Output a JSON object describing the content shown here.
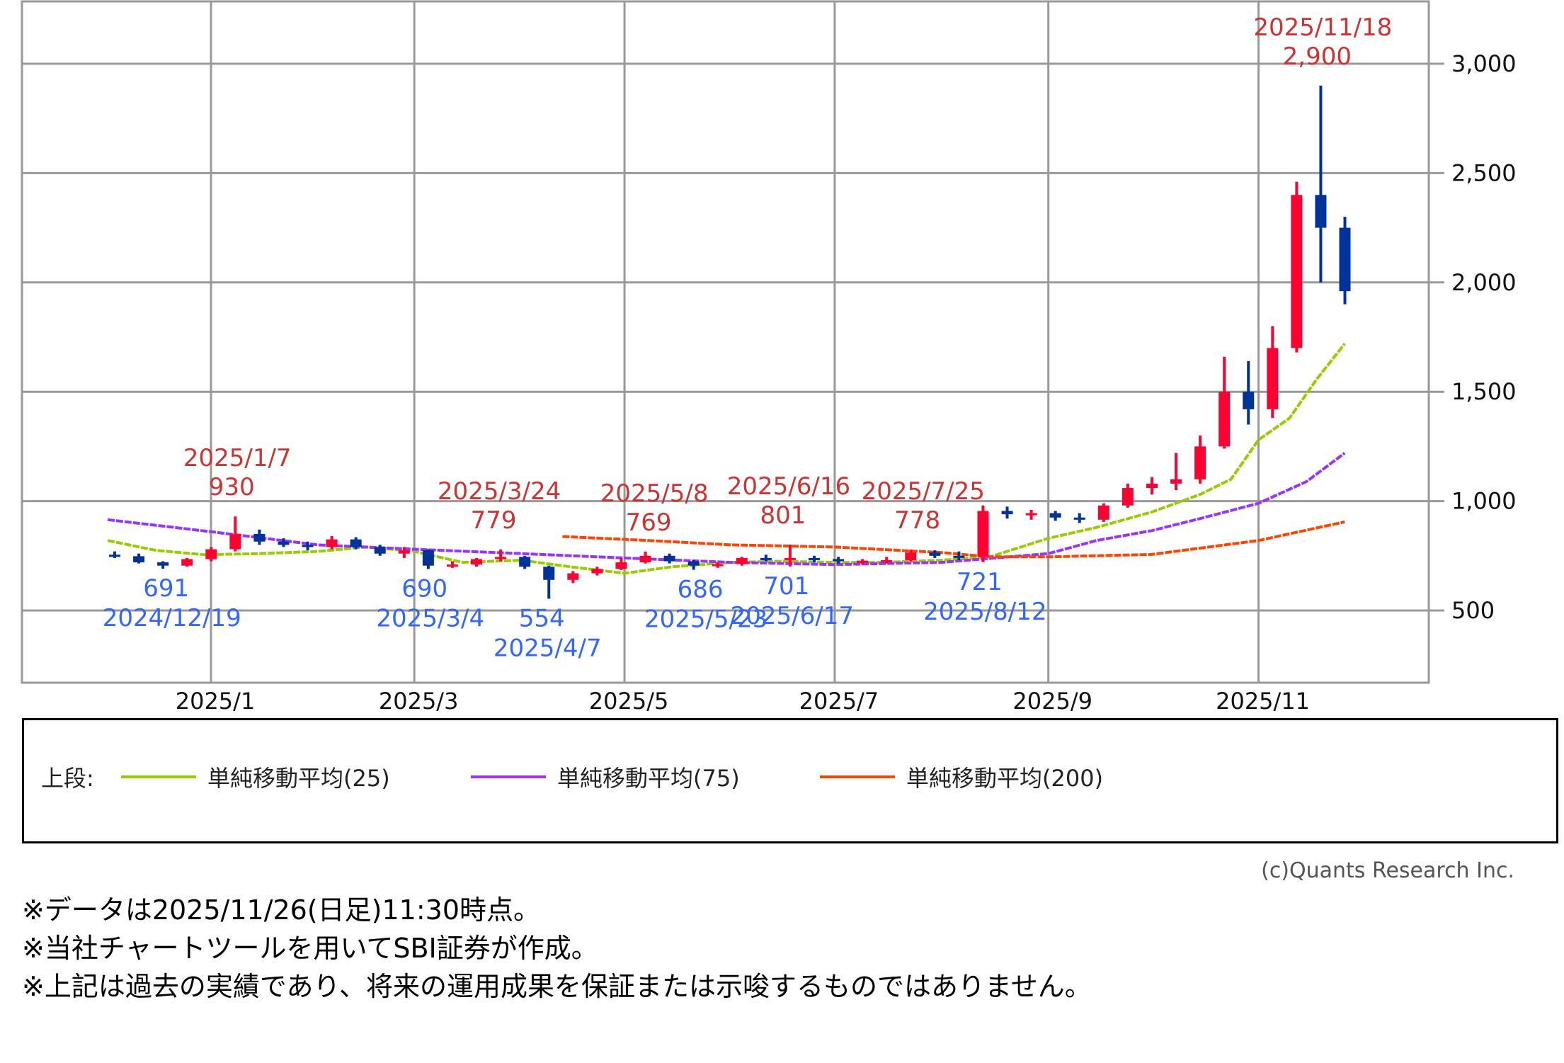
{
  "chart_data": {
    "type": "candlestick",
    "granularity_note": "",
    "x_ticks": [
      {
        "label": "2025/1",
        "date": "2025-01-01"
      },
      {
        "label": "2025/3",
        "date": "2025-03-01"
      },
      {
        "label": "2025/5",
        "date": "2025-05-01"
      },
      {
        "label": "2025/7",
        "date": "2025-07-01"
      },
      {
        "label": "2025/9",
        "date": "2025-09-01"
      },
      {
        "label": "2025/11",
        "date": "2025-11-01"
      }
    ],
    "y_ticks": [
      {
        "label": "500",
        "value": 500
      },
      {
        "label": "1,000",
        "value": 1000
      },
      {
        "label": "1,500",
        "value": 1500
      },
      {
        "label": "2,000",
        "value": 2000
      },
      {
        "label": "2,500",
        "value": 2500
      },
      {
        "label": "3,000",
        "value": 3000
      }
    ],
    "ylim": [
      200,
      3300
    ],
    "grid": true,
    "colors": {
      "up": "#ff0033",
      "down": "#003399",
      "ma25": "#99cc00",
      "ma75": "#9933ff",
      "ma200": "#ff4400",
      "high_label": "#cc3333",
      "low_label": "#3366ff",
      "grid": "#999999"
    },
    "candles": [
      {
        "date": "2024-12-02",
        "o": 755,
        "h": 770,
        "l": 740,
        "c": 748
      },
      {
        "date": "2024-12-09",
        "o": 748,
        "h": 760,
        "l": 715,
        "c": 720
      },
      {
        "date": "2024-12-16",
        "o": 720,
        "h": 725,
        "l": 691,
        "c": 705
      },
      {
        "date": "2024-12-23",
        "o": 705,
        "h": 740,
        "l": 700,
        "c": 735
      },
      {
        "date": "2024-12-30",
        "o": 735,
        "h": 790,
        "l": 725,
        "c": 780
      },
      {
        "date": "2025-01-06",
        "o": 780,
        "h": 930,
        "l": 770,
        "c": 850
      },
      {
        "date": "2025-01-13",
        "o": 850,
        "h": 870,
        "l": 800,
        "c": 815
      },
      {
        "date": "2025-01-20",
        "o": 815,
        "h": 830,
        "l": 790,
        "c": 800
      },
      {
        "date": "2025-01-27",
        "o": 800,
        "h": 815,
        "l": 775,
        "c": 790
      },
      {
        "date": "2025-02-03",
        "o": 790,
        "h": 840,
        "l": 780,
        "c": 825
      },
      {
        "date": "2025-02-10",
        "o": 825,
        "h": 835,
        "l": 780,
        "c": 790
      },
      {
        "date": "2025-02-17",
        "o": 790,
        "h": 800,
        "l": 750,
        "c": 760
      },
      {
        "date": "2025-02-24",
        "o": 760,
        "h": 790,
        "l": 740,
        "c": 775
      },
      {
        "date": "2025-03-03",
        "o": 775,
        "h": 780,
        "l": 690,
        "c": 705
      },
      {
        "date": "2025-03-10",
        "o": 705,
        "h": 725,
        "l": 695,
        "c": 710
      },
      {
        "date": "2025-03-17",
        "o": 710,
        "h": 740,
        "l": 700,
        "c": 735
      },
      {
        "date": "2025-03-24",
        "o": 735,
        "h": 779,
        "l": 725,
        "c": 745
      },
      {
        "date": "2025-03-31",
        "o": 745,
        "h": 750,
        "l": 690,
        "c": 700
      },
      {
        "date": "2025-04-07",
        "o": 700,
        "h": 705,
        "l": 554,
        "c": 640
      },
      {
        "date": "2025-04-14",
        "o": 640,
        "h": 680,
        "l": 625,
        "c": 670
      },
      {
        "date": "2025-04-21",
        "o": 670,
        "h": 700,
        "l": 660,
        "c": 690
      },
      {
        "date": "2025-04-28",
        "o": 690,
        "h": 740,
        "l": 685,
        "c": 720
      },
      {
        "date": "2025-05-05",
        "o": 720,
        "h": 769,
        "l": 715,
        "c": 750
      },
      {
        "date": "2025-05-12",
        "o": 750,
        "h": 760,
        "l": 715,
        "c": 725
      },
      {
        "date": "2025-05-19",
        "o": 725,
        "h": 730,
        "l": 686,
        "c": 705
      },
      {
        "date": "2025-05-26",
        "o": 705,
        "h": 720,
        "l": 695,
        "c": 712
      },
      {
        "date": "2025-06-02",
        "o": 712,
        "h": 745,
        "l": 705,
        "c": 740
      },
      {
        "date": "2025-06-09",
        "o": 740,
        "h": 755,
        "l": 725,
        "c": 735
      },
      {
        "date": "2025-06-16",
        "o": 735,
        "h": 801,
        "l": 701,
        "c": 740
      },
      {
        "date": "2025-06-23",
        "o": 740,
        "h": 750,
        "l": 720,
        "c": 735
      },
      {
        "date": "2025-06-30",
        "o": 735,
        "h": 745,
        "l": 715,
        "c": 725
      },
      {
        "date": "2025-07-07",
        "o": 725,
        "h": 735,
        "l": 710,
        "c": 728
      },
      {
        "date": "2025-07-14",
        "o": 728,
        "h": 745,
        "l": 715,
        "c": 730
      },
      {
        "date": "2025-07-21",
        "o": 730,
        "h": 778,
        "l": 725,
        "c": 765
      },
      {
        "date": "2025-07-28",
        "o": 765,
        "h": 775,
        "l": 740,
        "c": 750
      },
      {
        "date": "2025-08-04",
        "o": 750,
        "h": 770,
        "l": 730,
        "c": 745
      },
      {
        "date": "2025-08-11",
        "o": 745,
        "h": 980,
        "l": 721,
        "c": 955
      },
      {
        "date": "2025-08-18",
        "o": 955,
        "h": 975,
        "l": 920,
        "c": 940
      },
      {
        "date": "2025-08-25",
        "o": 940,
        "h": 960,
        "l": 915,
        "c": 945
      },
      {
        "date": "2025-09-01",
        "o": 945,
        "h": 955,
        "l": 910,
        "c": 925
      },
      {
        "date": "2025-09-08",
        "o": 925,
        "h": 945,
        "l": 900,
        "c": 915
      },
      {
        "date": "2025-09-15",
        "o": 915,
        "h": 990,
        "l": 905,
        "c": 980
      },
      {
        "date": "2025-09-22",
        "o": 980,
        "h": 1080,
        "l": 970,
        "c": 1060
      },
      {
        "date": "2025-09-29",
        "o": 1060,
        "h": 1110,
        "l": 1030,
        "c": 1080
      },
      {
        "date": "2025-10-06",
        "o": 1080,
        "h": 1220,
        "l": 1050,
        "c": 1100
      },
      {
        "date": "2025-10-13",
        "o": 1100,
        "h": 1300,
        "l": 1080,
        "c": 1250
      },
      {
        "date": "2025-10-20",
        "o": 1250,
        "h": 1660,
        "l": 1240,
        "c": 1500
      },
      {
        "date": "2025-10-27",
        "o": 1500,
        "h": 1640,
        "l": 1350,
        "c": 1420
      },
      {
        "date": "2025-11-03",
        "o": 1420,
        "h": 1800,
        "l": 1380,
        "c": 1700
      },
      {
        "date": "2025-11-10",
        "o": 1700,
        "h": 2460,
        "l": 1680,
        "c": 2400
      },
      {
        "date": "2025-11-17",
        "o": 2400,
        "h": 2900,
        "l": 2000,
        "c": 2250
      },
      {
        "date": "2025-11-24",
        "o": 2250,
        "h": 2300,
        "l": 1900,
        "c": 1960
      }
    ],
    "moving_averages": [
      {
        "name": "単純移動平均(25)",
        "key": "ma25",
        "points": [
          [
            "2024-12-02",
            820
          ],
          [
            "2024-12-16",
            775
          ],
          [
            "2024-12-30",
            755
          ],
          [
            "2025-01-15",
            760
          ],
          [
            "2025-02-01",
            770
          ],
          [
            "2025-02-15",
            790
          ],
          [
            "2025-03-01",
            770
          ],
          [
            "2025-03-15",
            720
          ],
          [
            "2025-04-01",
            730
          ],
          [
            "2025-04-15",
            700
          ],
          [
            "2025-05-01",
            670
          ],
          [
            "2025-05-15",
            700
          ],
          [
            "2025-06-01",
            720
          ],
          [
            "2025-06-15",
            725
          ],
          [
            "2025-07-01",
            720
          ],
          [
            "2025-07-15",
            720
          ],
          [
            "2025-08-01",
            730
          ],
          [
            "2025-08-15",
            745
          ],
          [
            "2025-09-01",
            830
          ],
          [
            "2025-09-15",
            880
          ],
          [
            "2025-10-01",
            950
          ],
          [
            "2025-10-15",
            1030
          ],
          [
            "2025-10-24",
            1100
          ],
          [
            "2025-11-01",
            1280
          ],
          [
            "2025-11-10",
            1380
          ],
          [
            "2025-11-18",
            1560
          ],
          [
            "2025-11-26",
            1720
          ]
        ]
      },
      {
        "name": "単純移動平均(75)",
        "key": "ma75",
        "points": [
          [
            "2024-12-02",
            915
          ],
          [
            "2025-01-01",
            860
          ],
          [
            "2025-02-01",
            800
          ],
          [
            "2025-03-01",
            780
          ],
          [
            "2025-04-01",
            760
          ],
          [
            "2025-05-01",
            740
          ],
          [
            "2025-06-01",
            720
          ],
          [
            "2025-07-01",
            710
          ],
          [
            "2025-08-01",
            720
          ],
          [
            "2025-09-01",
            760
          ],
          [
            "2025-09-15",
            820
          ],
          [
            "2025-10-01",
            865
          ],
          [
            "2025-10-15",
            920
          ],
          [
            "2025-11-01",
            990
          ],
          [
            "2025-11-15",
            1090
          ],
          [
            "2025-11-26",
            1220
          ]
        ]
      },
      {
        "name": "単純移動平均(200)",
        "key": "ma200",
        "points": [
          [
            "2025-04-13",
            838
          ],
          [
            "2025-05-08",
            820
          ],
          [
            "2025-06-01",
            800
          ],
          [
            "2025-07-01",
            790
          ],
          [
            "2025-08-01",
            765
          ],
          [
            "2025-08-15",
            745
          ],
          [
            "2025-09-01",
            745
          ],
          [
            "2025-10-01",
            756
          ],
          [
            "2025-10-15",
            785
          ],
          [
            "2025-11-01",
            820
          ],
          [
            "2025-11-26",
            905
          ]
        ]
      }
    ],
    "annotations": [
      {
        "kind": "high",
        "date": "2025-01-07",
        "date_label": "2025/1/7",
        "value": 930,
        "value_label": "930"
      },
      {
        "kind": "high",
        "date": "2025-03-24",
        "date_label": "2025/3/24",
        "value": 779,
        "value_label": "779"
      },
      {
        "kind": "high",
        "date": "2025-05-08",
        "date_label": "2025/5/8",
        "value": 769,
        "value_label": "769"
      },
      {
        "kind": "high",
        "date": "2025-06-16",
        "date_label": "2025/6/16",
        "value": 801,
        "value_label": "801"
      },
      {
        "kind": "high",
        "date": "2025-07-25",
        "date_label": "2025/7/25",
        "value": 778,
        "value_label": "778"
      },
      {
        "kind": "high",
        "date": "2025-11-18",
        "date_label": "2025/11/18",
        "value": 2900,
        "value_label": "2,900"
      },
      {
        "kind": "low",
        "date": "2024-12-19",
        "date_label": "2024/12/19",
        "value": 691,
        "value_label": "691"
      },
      {
        "kind": "low",
        "date": "2025-03-04",
        "date_label": "2025/3/4",
        "value": 690,
        "value_label": "690"
      },
      {
        "kind": "low",
        "date": "2025-04-07",
        "date_label": "2025/4/7",
        "value": 554,
        "value_label": "554"
      },
      {
        "kind": "low",
        "date": "2025-05-23",
        "date_label": "2025/5/23",
        "value": 686,
        "value_label": "686"
      },
      {
        "kind": "low",
        "date": "2025-06-17",
        "date_label": "2025/6/17",
        "value": 701,
        "value_label": "701"
      },
      {
        "kind": "low",
        "date": "2025-08-12",
        "date_label": "2025/8/12",
        "value": 721,
        "value_label": "721"
      }
    ]
  },
  "legend": {
    "prefix": "上段:",
    "items": [
      {
        "label": "単純移動平均(25)",
        "color": "#99cc00"
      },
      {
        "label": "単純移動平均(75)",
        "color": "#9933ff"
      },
      {
        "label": "単純移動平均(200)",
        "color": "#ff4400"
      }
    ]
  },
  "copyright": "(c)Quants Research Inc.",
  "notes": [
    "※データは2025/11/26(日足)11:30時点。",
    "※当社チャートツールを用いてSBI証券が作成。",
    "※上記は過去の実績であり、将来の運用成果を保証または示唆するものではありません。"
  ]
}
